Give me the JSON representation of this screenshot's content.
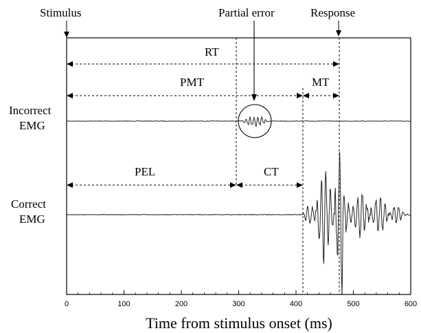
{
  "labels": {
    "stimulus": "Stimulus",
    "partial_error": "Partial error",
    "response": "Response",
    "rt": "RT",
    "pmt": "PMT",
    "mt": "MT",
    "pel": "PEL",
    "ct": "CT",
    "incorrect_line1": "Incorrect",
    "incorrect_line2": "EMG",
    "correct_line1": "Correct",
    "correct_line2": "EMG"
  },
  "axis": {
    "xlabel": "Time from stimulus onset (ms)",
    "xlim": [
      0,
      600
    ],
    "ticks": [
      "0",
      "100",
      "200",
      "300",
      "400",
      "500",
      "600"
    ]
  },
  "events_ms": {
    "stimulus": 0,
    "partial_error_onset": 295,
    "correct_emg_onset": 412,
    "response": 475
  }
}
